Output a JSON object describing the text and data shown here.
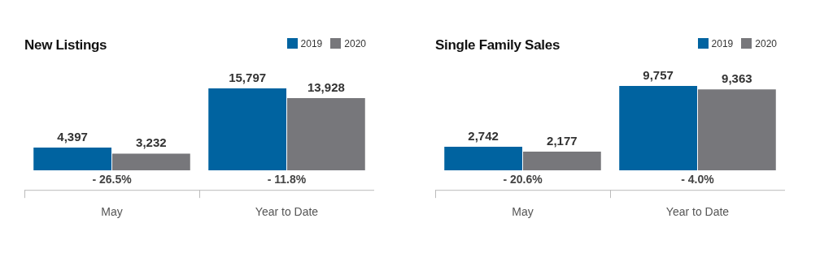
{
  "chart_data": [
    {
      "type": "bar",
      "title": "New Listings",
      "categories": [
        "May",
        "Year to Date"
      ],
      "legend": "top right",
      "series": [
        {
          "name": "2019",
          "color": "#0063a0",
          "values": [
            4397,
            15797
          ],
          "value_labels": [
            "4,397",
            "15,797"
          ]
        },
        {
          "name": "2020",
          "color": "#77777b",
          "values": [
            3232,
            13928
          ],
          "value_labels": [
            "3,232",
            "13,928"
          ]
        }
      ],
      "annotations": [
        "- 26.5%",
        "- 11.8%"
      ]
    },
    {
      "type": "bar",
      "title": "Single Family Sales",
      "categories": [
        "May",
        "Year to Date"
      ],
      "legend": "top right",
      "series": [
        {
          "name": "2019",
          "color": "#0063a0",
          "values": [
            2742,
            9757
          ],
          "value_labels": [
            "2,742",
            "9,757"
          ]
        },
        {
          "name": "2020",
          "color": "#77777b",
          "values": [
            2177,
            9363
          ],
          "value_labels": [
            "2,177",
            "9,363"
          ]
        }
      ],
      "annotations": [
        "- 20.6%",
        "- 4.0%"
      ]
    }
  ]
}
